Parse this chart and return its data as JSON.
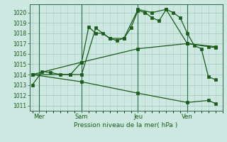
{
  "background_color": "#cce8e0",
  "grid_color": "#aaccc4",
  "line_color": "#1a5c1a",
  "title": "Pression niveau de la mer( hPa )",
  "ylim": [
    1010.5,
    1020.8
  ],
  "xlim": [
    -0.2,
    13.2
  ],
  "yticks": [
    1011,
    1012,
    1013,
    1014,
    1015,
    1016,
    1017,
    1018,
    1019,
    1020
  ],
  "xtick_labels": [
    "Mer",
    "Sam",
    "Jeu",
    "Ven"
  ],
  "xtick_positions": [
    0.5,
    3.5,
    7.5,
    11.0
  ],
  "vline_positions": [
    0.5,
    3.5,
    7.5,
    11.0
  ],
  "series": [
    {
      "x": [
        0.0,
        0.7,
        1.3,
        2.0,
        2.7,
        3.5,
        4.0,
        4.5,
        5.0,
        5.5,
        6.0,
        6.5,
        7.0,
        7.5,
        8.0,
        8.5,
        9.0,
        9.5,
        10.0,
        10.5,
        11.0,
        11.5,
        12.0,
        12.5,
        13.0
      ],
      "y": [
        1013.0,
        1014.3,
        1014.2,
        1014.0,
        1014.0,
        1015.2,
        1018.6,
        1018.0,
        1018.0,
        1017.5,
        1017.3,
        1017.5,
        1018.5,
        1020.2,
        1020.0,
        1019.5,
        1019.2,
        1020.3,
        1020.0,
        1019.5,
        1018.0,
        1016.8,
        1016.5,
        1013.8,
        1013.5
      ]
    },
    {
      "x": [
        0.0,
        2.7,
        3.5,
        4.5,
        5.5,
        6.5,
        7.5,
        8.5,
        9.5,
        11.0,
        12.5,
        13.0
      ],
      "y": [
        1014.0,
        1014.0,
        1014.0,
        1018.5,
        1017.5,
        1017.5,
        1020.3,
        1020.0,
        1020.3,
        1017.0,
        1016.7,
        1016.6
      ]
    },
    {
      "x": [
        0.0,
        3.5,
        7.5,
        11.0,
        13.0
      ],
      "y": [
        1014.0,
        1015.2,
        1016.5,
        1017.0,
        1016.7
      ]
    },
    {
      "x": [
        0.0,
        3.5,
        7.5,
        11.0,
        12.5,
        13.0
      ],
      "y": [
        1014.0,
        1013.3,
        1012.2,
        1011.3,
        1011.5,
        1011.2
      ]
    }
  ]
}
